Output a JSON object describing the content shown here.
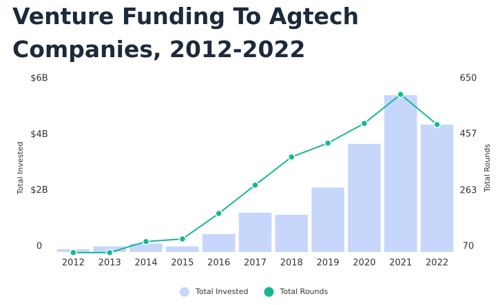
{
  "chart_data": {
    "type": "bar",
    "title": "Venture Funding To Agtech Companies, 2012-2022",
    "y_label": "Total Invested",
    "y2_label": "Total Rounds",
    "categories": [
      "2012",
      "2013",
      "2014",
      "2015",
      "2016",
      "2017",
      "2018",
      "2019",
      "2020",
      "2021",
      "2022"
    ],
    "series": [
      {
        "name": "Total Invested",
        "type": "bar",
        "color": "#c7d6fb",
        "values": [
          100000000,
          200000000,
          300000000,
          200000000,
          640000000,
          1400000000,
          1330000000,
          2300000000,
          3860000000,
          5600000000,
          4550000000
        ]
      },
      {
        "name": "Total Rounds",
        "type": "line",
        "axis": "y2",
        "color": "#14b893",
        "values": [
          68,
          68,
          106,
          115,
          203,
          301,
          398,
          446,
          514,
          614,
          510
        ]
      }
    ],
    "ylim": [
      0,
      6000000000
    ],
    "yticks": [
      0,
      {
        "value": 2000000000,
        "label": "$2B"
      },
      {
        "value": 4000000000,
        "label": "$4B"
      },
      {
        "value": 6000000000,
        "label": "$6B"
      }
    ],
    "y2lim": [
      70,
      650
    ],
    "y2ticks": [
      70,
      263,
      457,
      650
    ],
    "legend": "bottom"
  }
}
